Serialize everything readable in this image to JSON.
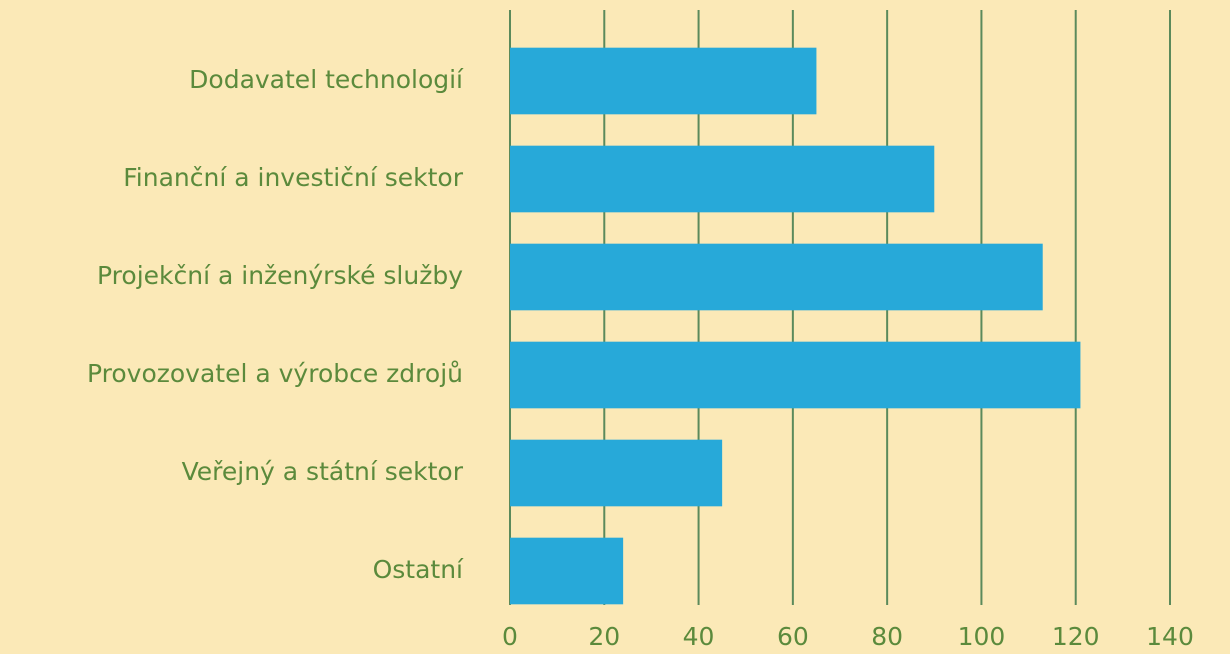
{
  "chart_data": {
    "type": "bar",
    "orientation": "horizontal",
    "categories": [
      "Dodavatel technologií",
      "Finanční a investiční sektor",
      "Projekční a inženýrské služby",
      "Provozovatel a výrobce zdrojů",
      "Veřejný a státní sektor",
      "Ostatní"
    ],
    "values": [
      65,
      90,
      113,
      121,
      45,
      24
    ],
    "color": "#27a9d9",
    "xlim": [
      0,
      140
    ],
    "xticks": [
      0,
      20,
      40,
      60,
      80,
      100,
      120,
      140
    ],
    "grid": true
  }
}
